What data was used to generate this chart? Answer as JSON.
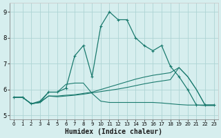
{
  "xlabel": "Humidex (Indice chaleur)",
  "bg_color": "#d6eeee",
  "grid_color": "#aed4d4",
  "line_color": "#1a7a6e",
  "xlim": [
    -0.5,
    23.5
  ],
  "ylim": [
    4.85,
    9.35
  ],
  "yticks": [
    5,
    6,
    7,
    8,
    9
  ],
  "xticks": [
    0,
    1,
    2,
    3,
    4,
    5,
    6,
    7,
    8,
    9,
    10,
    11,
    12,
    13,
    14,
    15,
    16,
    17,
    18,
    19,
    20,
    21,
    22,
    23
  ],
  "line_main_x": [
    0,
    1,
    2,
    3,
    4,
    5,
    6,
    7,
    8,
    9,
    10,
    11,
    12,
    13,
    14,
    15,
    16,
    17,
    18,
    19,
    20,
    21,
    22,
    23
  ],
  "line_main_y": [
    5.7,
    5.7,
    5.45,
    5.55,
    5.9,
    5.9,
    6.05,
    7.3,
    7.7,
    6.5,
    8.45,
    9.0,
    8.7,
    8.7,
    8.0,
    7.7,
    7.5,
    7.7,
    6.9,
    6.5,
    6.0,
    5.4,
    5.4,
    5.4
  ],
  "line_flat_x": [
    0,
    1,
    2,
    3,
    4,
    5,
    6,
    7,
    8,
    9,
    10,
    11,
    12,
    13,
    14,
    15,
    16,
    17,
    18,
    19,
    20,
    21,
    22,
    23
  ],
  "line_flat_y": [
    5.7,
    5.7,
    5.45,
    5.5,
    5.9,
    5.9,
    6.2,
    6.25,
    6.25,
    5.85,
    5.55,
    5.5,
    5.5,
    5.5,
    5.5,
    5.5,
    5.5,
    5.48,
    5.45,
    5.42,
    5.4,
    5.4,
    5.38,
    5.38
  ],
  "line_rise1_x": [
    0,
    1,
    2,
    3,
    4,
    5,
    6,
    7,
    8,
    9,
    10,
    11,
    12,
    13,
    14,
    15,
    16,
    17,
    18,
    19,
    20,
    21,
    22,
    23
  ],
  "line_rise1_y": [
    5.7,
    5.7,
    5.45,
    5.5,
    5.75,
    5.75,
    5.78,
    5.8,
    5.85,
    5.9,
    6.0,
    6.1,
    6.2,
    6.3,
    6.4,
    6.48,
    6.55,
    6.6,
    6.65,
    6.85,
    6.5,
    6.0,
    5.4,
    5.4
  ],
  "line_rise2_x": [
    0,
    1,
    2,
    3,
    4,
    5,
    6,
    7,
    8,
    9,
    10,
    11,
    12,
    13,
    14,
    15,
    16,
    17,
    18,
    19,
    20,
    21,
    22,
    23
  ],
  "line_rise2_y": [
    5.7,
    5.7,
    5.45,
    5.5,
    5.75,
    5.72,
    5.75,
    5.78,
    5.82,
    5.87,
    5.92,
    5.97,
    6.02,
    6.08,
    6.15,
    6.22,
    6.28,
    6.33,
    6.38,
    6.85,
    6.5,
    6.0,
    5.4,
    5.4
  ]
}
